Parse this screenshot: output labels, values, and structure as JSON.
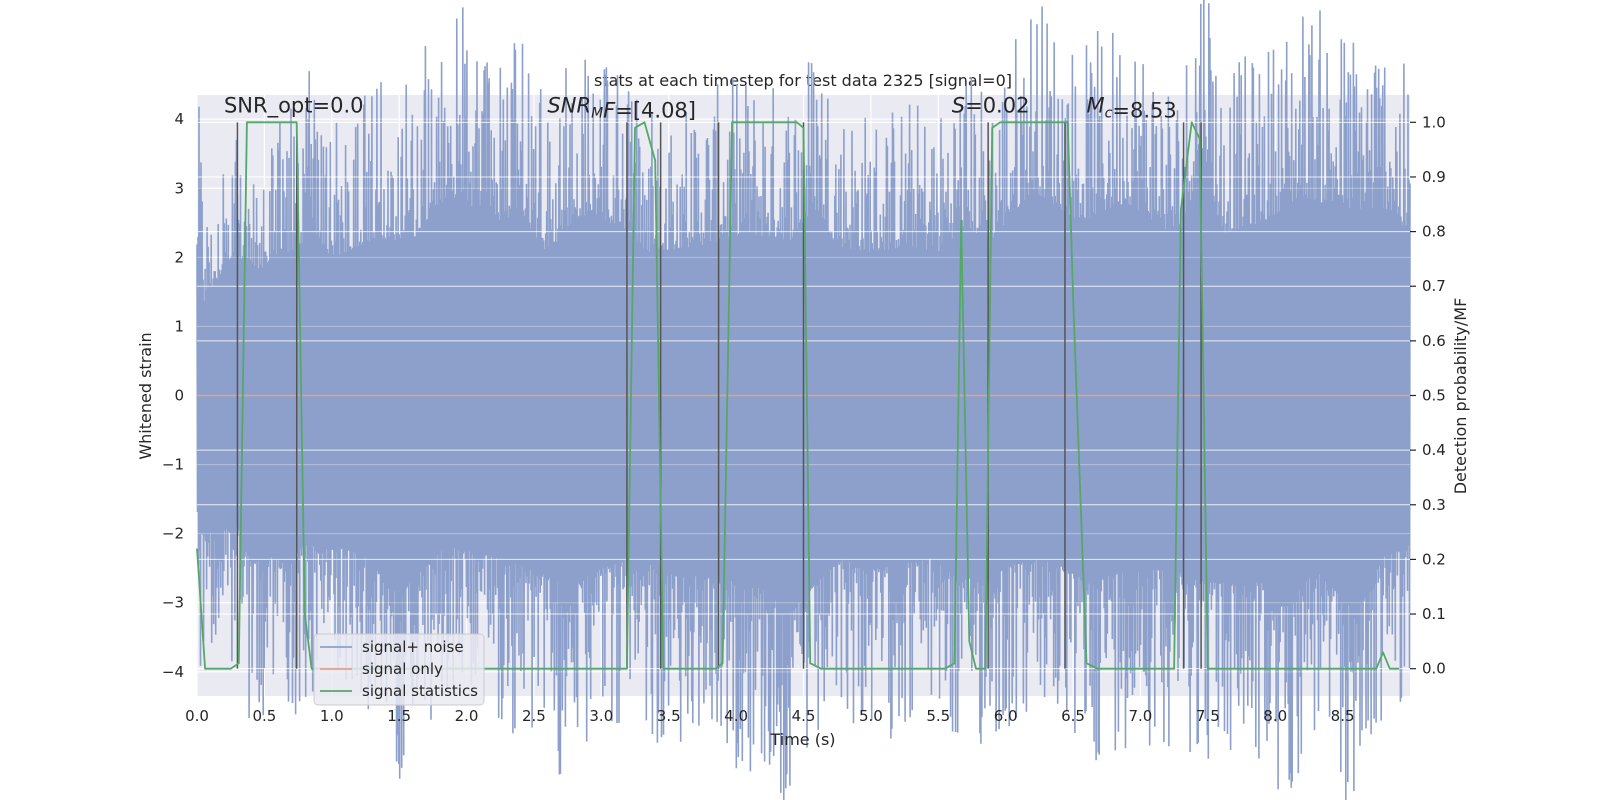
{
  "chart_data": {
    "type": "line",
    "title": "stats at each timestep for test data 2325 [signal=0]",
    "xlabel": "Time (s)",
    "ylabel_left": "Whitened strain",
    "ylabel_right": "Detection probability/MF",
    "xlim": [
      0.0,
      9.0
    ],
    "ylim_left": [
      -4.35,
      4.35
    ],
    "ylim_right": [
      -0.05,
      1.05
    ],
    "x_ticks": [
      0.0,
      0.5,
      1.0,
      1.5,
      2.0,
      2.5,
      3.0,
      3.5,
      4.0,
      4.5,
      5.0,
      5.5,
      6.0,
      6.5,
      7.0,
      7.5,
      8.0,
      8.5
    ],
    "x_tick_labels": [
      "0.0",
      "0.5",
      "1.0",
      "1.5",
      "2.0",
      "2.5",
      "3.0",
      "3.5",
      "4.0",
      "4.5",
      "5.0",
      "5.5",
      "6.0",
      "6.5",
      "7.0",
      "7.5",
      "8.0",
      "8.5"
    ],
    "y_left_ticks": [
      -4,
      -3,
      -2,
      -1,
      0,
      1,
      2,
      3,
      4
    ],
    "y_left_tick_labels": [
      "−4",
      "−3",
      "−2",
      "−1",
      "0",
      "1",
      "2",
      "3",
      "4"
    ],
    "y_right_ticks": [
      0.0,
      0.1,
      0.2,
      0.3,
      0.4,
      0.5,
      0.6,
      0.7,
      0.8,
      0.9,
      1.0
    ],
    "y_right_tick_labels": [
      "0.0",
      "0.1",
      "0.2",
      "0.3",
      "0.4",
      "0.5",
      "0.6",
      "0.7",
      "0.8",
      "0.9",
      "1.0"
    ],
    "grid": true,
    "annotations": [
      {
        "name": "snr-opt",
        "text": "SNR_opt=0.0",
        "x": 0.2
      },
      {
        "name": "snr-mf",
        "text": "SNR_MF=[4.08]",
        "parts": [
          {
            "t": "SNR",
            "italic": true
          },
          {
            "t": "M",
            "italic": true,
            "sub": true
          },
          {
            "t": "F",
            "italic": true
          },
          {
            "t": "=[4.08]"
          }
        ],
        "x": 2.6
      },
      {
        "name": "stat-s",
        "text": "S=0.02",
        "parts": [
          {
            "t": "S",
            "italic": true
          },
          {
            "t": "=0.02"
          }
        ],
        "x": 5.6
      },
      {
        "name": "chirp-mass",
        "text": "M_c=8.53",
        "parts": [
          {
            "t": "M",
            "italic": true
          },
          {
            "t": "c",
            "italic": true,
            "sub": true
          },
          {
            "t": "=8.53"
          }
        ],
        "x": 6.6
      }
    ],
    "annotation_y": 4.1,
    "series": [
      {
        "name": "signal+ noise",
        "color": "#8da0cb",
        "axis": "left",
        "envelope_upper": [
          [
            0.0,
            1.6
          ],
          [
            0.02,
            3.5
          ],
          [
            0.05,
            1.5
          ],
          [
            0.3,
            2.4
          ],
          [
            0.32,
            2.2
          ],
          [
            0.5,
            2.0
          ],
          [
            0.55,
            2.2
          ],
          [
            0.78,
            2.4
          ],
          [
            0.82,
            2.8
          ],
          [
            1.0,
            2.2
          ],
          [
            1.3,
            2.5
          ],
          [
            1.6,
            2.5
          ],
          [
            1.8,
            3.1
          ],
          [
            2.0,
            3.1
          ],
          [
            2.2,
            2.8
          ],
          [
            2.4,
            2.9
          ],
          [
            2.6,
            2.3
          ],
          [
            2.85,
            2.9
          ],
          [
            3.15,
            2.7
          ],
          [
            3.35,
            2.3
          ],
          [
            3.7,
            2.4
          ],
          [
            3.9,
            2.5
          ],
          [
            4.05,
            2.6
          ],
          [
            4.4,
            2.5
          ],
          [
            4.6,
            3.0
          ],
          [
            4.75,
            2.4
          ],
          [
            5.0,
            2.3
          ],
          [
            5.3,
            2.4
          ],
          [
            5.5,
            2.3
          ],
          [
            5.68,
            2.7
          ],
          [
            5.9,
            2.5
          ],
          [
            6.2,
            3.3
          ],
          [
            6.55,
            2.8
          ],
          [
            6.9,
            3.1
          ],
          [
            7.3,
            2.5
          ],
          [
            7.47,
            4.0
          ],
          [
            7.6,
            2.6
          ],
          [
            7.92,
            2.8
          ],
          [
            8.2,
            3.2
          ],
          [
            8.5,
            3.0
          ],
          [
            8.85,
            3.0
          ],
          [
            9.0,
            2.5
          ]
        ],
        "envelope_lower": [
          [
            0.0,
            -1.8
          ],
          [
            0.02,
            -2.2
          ],
          [
            0.3,
            -2.1
          ],
          [
            0.4,
            -2.7
          ],
          [
            0.55,
            -2.6
          ],
          [
            0.65,
            -2.7
          ],
          [
            0.8,
            -2.4
          ],
          [
            1.2,
            -2.5
          ],
          [
            1.5,
            -3.2
          ],
          [
            1.85,
            -2.4
          ],
          [
            2.2,
            -2.6
          ],
          [
            2.5,
            -2.8
          ],
          [
            2.75,
            -3.1
          ],
          [
            2.9,
            -2.9
          ],
          [
            3.2,
            -2.6
          ],
          [
            3.6,
            -2.9
          ],
          [
            3.8,
            -2.9
          ],
          [
            4.0,
            -3.0
          ],
          [
            4.2,
            -3.1
          ],
          [
            4.4,
            -3.5
          ],
          [
            4.6,
            -3.0
          ],
          [
            4.8,
            -2.6
          ],
          [
            5.0,
            -2.8
          ],
          [
            5.25,
            -2.7
          ],
          [
            5.5,
            -2.6
          ],
          [
            5.65,
            -3.0
          ],
          [
            5.9,
            -2.8
          ],
          [
            6.3,
            -2.6
          ],
          [
            6.6,
            -3.0
          ],
          [
            6.9,
            -2.8
          ],
          [
            7.2,
            -2.8
          ],
          [
            7.6,
            -3.0
          ],
          [
            7.9,
            -3.0
          ],
          [
            8.0,
            -3.5
          ],
          [
            8.3,
            -2.8
          ],
          [
            8.6,
            -3.5
          ],
          [
            8.8,
            -2.6
          ],
          [
            9.0,
            -2.4
          ]
        ]
      },
      {
        "name": "signal only",
        "color": "#e5a188",
        "axis": "left",
        "x": [
          0.0,
          9.0
        ],
        "y": [
          0.0,
          0.0
        ]
      },
      {
        "name": "signal statistics",
        "color": "#55a868",
        "axis": "right",
        "x": [
          0.0,
          0.06,
          0.12,
          0.25,
          0.31,
          0.37,
          0.6,
          0.74,
          0.8,
          0.85,
          3.19,
          3.25,
          3.32,
          3.4,
          3.46,
          3.5,
          3.85,
          3.9,
          3.97,
          4.45,
          4.5,
          4.55,
          4.63,
          5.55,
          5.62,
          5.67,
          5.73,
          5.78,
          5.85,
          5.9,
          5.96,
          6.46,
          6.5,
          6.6,
          6.68,
          7.25,
          7.3,
          7.38,
          7.44,
          7.5,
          8.75,
          8.8,
          8.85,
          8.92
        ],
        "y": [
          0.22,
          0.0,
          0.0,
          0.0,
          0.01,
          1.0,
          1.0,
          1.0,
          0.1,
          0.0,
          0.0,
          0.99,
          1.0,
          0.93,
          0.0,
          0.0,
          0.0,
          0.01,
          1.0,
          1.0,
          0.99,
          0.01,
          0.0,
          0.0,
          0.01,
          0.82,
          0.05,
          0.0,
          0.0,
          0.99,
          1.0,
          1.0,
          0.68,
          0.01,
          0.0,
          0.0,
          0.84,
          1.0,
          0.97,
          0.0,
          0.0,
          0.03,
          0.0,
          0.0
        ]
      }
    ],
    "vertical_markers": [
      0.3,
      0.74,
      3.19,
      3.44,
      3.87,
      4.5,
      5.87,
      6.44,
      7.32,
      7.45
    ],
    "legend": {
      "placement": "lower-left",
      "entries": [
        "signal+ noise",
        "signal only",
        "signal statistics"
      ]
    }
  }
}
